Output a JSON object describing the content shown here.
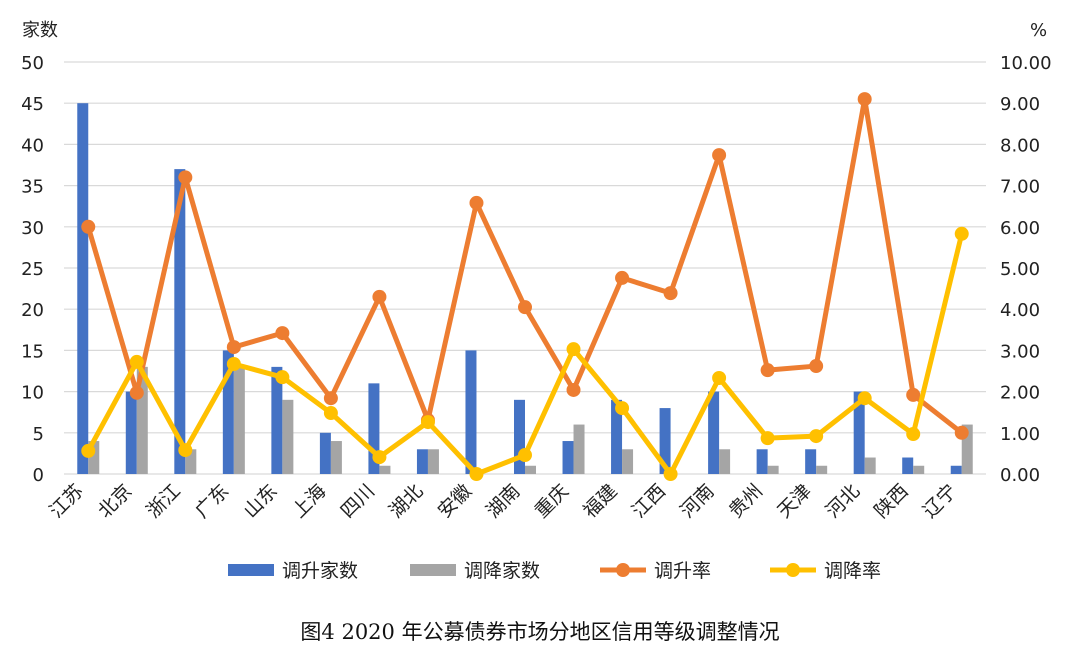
{
  "chart_data": {
    "type": "bar+line",
    "title": "图4   2020 年公募债券市场分地区信用等级调整情况",
    "ylabel_left": "家数",
    "ylabel_right": "%",
    "ylim_left": [
      0,
      50
    ],
    "ylim_right": [
      0,
      10
    ],
    "yticks_left": [
      "0",
      "5",
      "10",
      "15",
      "20",
      "25",
      "30",
      "35",
      "40",
      "45",
      "50"
    ],
    "yticks_right": [
      "0.00",
      "1.00",
      "2.00",
      "3.00",
      "4.00",
      "5.00",
      "6.00",
      "7.00",
      "8.00",
      "9.00",
      "10.00"
    ],
    "grid": true,
    "legend_position": "bottom",
    "categories": [
      "江苏",
      "北京",
      "浙江",
      "广东",
      "山东",
      "上海",
      "四川",
      "湖北",
      "安徽",
      "湖南",
      "重庆",
      "福建",
      "江西",
      "河南",
      "贵州",
      "天津",
      "河北",
      "陕西",
      "辽宁"
    ],
    "series": [
      {
        "name": "调升家数",
        "type": "bar",
        "axis": "left",
        "color": "#4472c4",
        "values": [
          45,
          10,
          37,
          15,
          13,
          5,
          11,
          3,
          15,
          9,
          4,
          9,
          8,
          10,
          3,
          3,
          10,
          2,
          1
        ]
      },
      {
        "name": "调降家数",
        "type": "bar",
        "axis": "left",
        "color": "#a5a5a5",
        "values": [
          4,
          13,
          3,
          13,
          9,
          4,
          1,
          3,
          0,
          1,
          6,
          3,
          0,
          3,
          1,
          1,
          2,
          1,
          6
        ]
      },
      {
        "name": "调升率",
        "type": "line",
        "axis": "right",
        "color": "#ed7d31",
        "values": [
          6.0,
          1.97,
          7.2,
          3.08,
          3.42,
          1.84,
          4.3,
          1.31,
          6.58,
          4.05,
          2.04,
          4.76,
          4.39,
          7.74,
          2.52,
          2.62,
          9.1,
          1.92,
          1.0
        ]
      },
      {
        "name": "调降率",
        "type": "line",
        "axis": "right",
        "color": "#ffc000",
        "values": [
          0.56,
          2.72,
          0.58,
          2.67,
          2.35,
          1.48,
          0.41,
          1.26,
          0.0,
          0.46,
          3.03,
          1.6,
          0.0,
          2.33,
          0.87,
          0.92,
          1.84,
          0.97,
          5.83
        ]
      }
    ]
  }
}
